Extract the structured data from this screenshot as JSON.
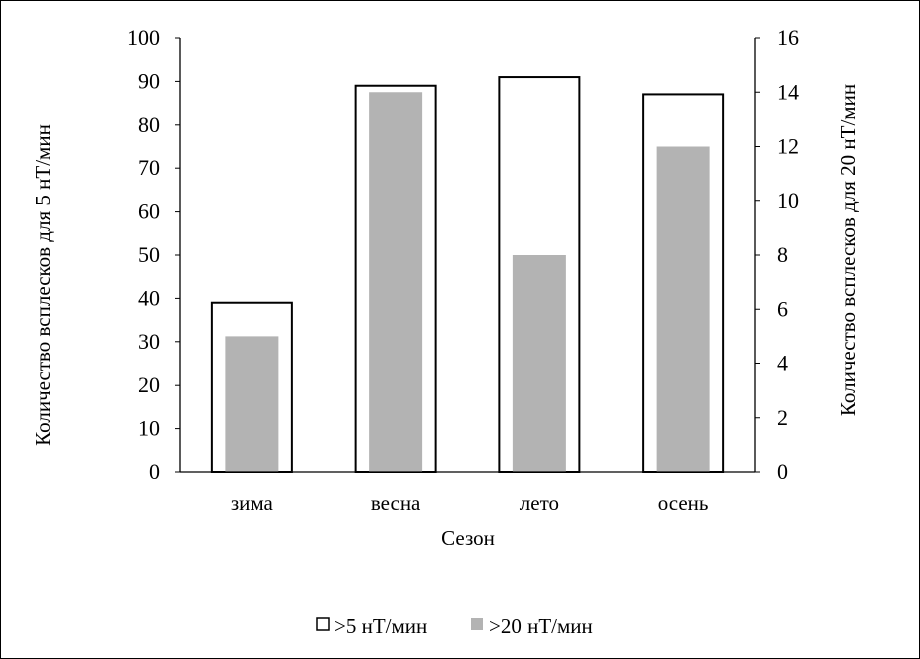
{
  "chart_data": {
    "type": "bar",
    "categories": [
      "зима",
      "весна",
      "лето",
      "осень"
    ],
    "series": [
      {
        "name": ">5 нТ/мин",
        "axis": "left",
        "values": [
          39,
          89,
          91,
          87
        ],
        "fill": "#ffffff",
        "stroke": "#000000"
      },
      {
        "name": ">20 нТ/мин",
        "axis": "right",
        "values": [
          5,
          14,
          8,
          12
        ],
        "fill": "#b3b3b3",
        "stroke": "none"
      }
    ],
    "xlabel": "Сезон",
    "ylabel": "Количество всплесков для 5 нТ/мин",
    "ylabel_right": "Количество всплесков для 20 нТ/мин",
    "ylim": [
      0,
      100
    ],
    "ylim_right": [
      0,
      16
    ],
    "yticks": [
      "0",
      "10",
      "20",
      "30",
      "40",
      "50",
      "60",
      "70",
      "80",
      "90",
      "100"
    ],
    "yticks_right": [
      "0",
      "2",
      "4",
      "6",
      "8",
      "10",
      "12",
      "14",
      "16"
    ],
    "grid": false,
    "legend_position": "bottom"
  }
}
